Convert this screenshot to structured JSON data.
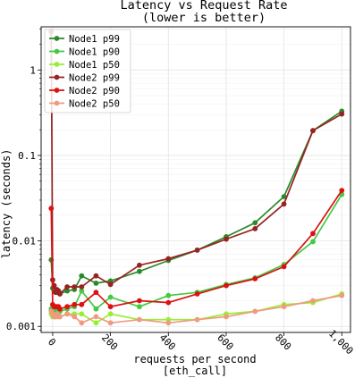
{
  "chart_data": {
    "type": "line",
    "title": "Latency vs Request Rate",
    "subtitle": "(lower is better)",
    "xlabel": "requests per second",
    "xlabel2": "[eth_call]",
    "ylabel": "latency (seconds)",
    "xlim": [
      -40,
      1030
    ],
    "ylim": [
      0.00085,
      3.2
    ],
    "yscale": "log",
    "x_ticks": [
      0,
      200,
      400,
      600,
      800,
      1000
    ],
    "x_tick_labels": [
      "0",
      "200",
      "400",
      "600",
      "800",
      "1,000"
    ],
    "y_ticks": [
      0.001,
      0.01,
      0.1,
      1
    ],
    "y_tick_labels": [
      "0.001",
      "0.01",
      "0.1",
      "1"
    ],
    "grid": true,
    "legend_position": "top-left",
    "series": [
      {
        "name": "Node1 p99",
        "color": "#2a8a2a",
        "x": [
          -5,
          0,
          5,
          10,
          15,
          20,
          25,
          50,
          75,
          100,
          150,
          200,
          300,
          400,
          500,
          600,
          700,
          800,
          900,
          1000
        ],
        "y": [
          0.006,
          0.0028,
          0.0026,
          0.0026,
          0.0025,
          0.0026,
          0.0024,
          0.0026,
          0.0027,
          0.0039,
          0.0032,
          0.0034,
          0.0044,
          0.0059,
          0.0078,
          0.0112,
          0.0163,
          0.033,
          0.195,
          0.33
        ]
      },
      {
        "name": "Node1 p90",
        "color": "#44c944",
        "x": [
          -5,
          0,
          5,
          10,
          15,
          20,
          25,
          50,
          75,
          100,
          150,
          200,
          300,
          400,
          500,
          600,
          700,
          800,
          900,
          1000
        ],
        "y": [
          0.0016,
          0.0016,
          0.0015,
          0.0015,
          0.0016,
          0.0016,
          0.0015,
          0.0016,
          0.0017,
          0.0026,
          0.0016,
          0.0022,
          0.0017,
          0.0023,
          0.0025,
          0.0031,
          0.0037,
          0.0053,
          0.0098,
          0.035
        ]
      },
      {
        "name": "Node1 p50",
        "color": "#99ee33",
        "x": [
          -5,
          0,
          5,
          10,
          15,
          20,
          25,
          50,
          75,
          100,
          150,
          200,
          300,
          400,
          500,
          600,
          700,
          800,
          900,
          1000
        ],
        "y": [
          0.0014,
          0.0013,
          0.0013,
          0.0013,
          0.0014,
          0.0013,
          0.0013,
          0.0014,
          0.0014,
          0.0014,
          0.0011,
          0.0014,
          0.0012,
          0.0012,
          0.0012,
          0.0014,
          0.0015,
          0.0018,
          0.0019,
          0.0024
        ]
      },
      {
        "name": "Node2 p99",
        "color": "#992222",
        "x": [
          -5,
          0,
          5,
          10,
          15,
          20,
          25,
          50,
          75,
          100,
          150,
          200,
          300,
          400,
          500,
          600,
          700,
          800,
          900,
          1000
        ],
        "y": [
          2.8,
          0.0035,
          0.003,
          0.0025,
          0.0027,
          0.0026,
          0.0024,
          0.0029,
          0.0029,
          0.0029,
          0.0039,
          0.0031,
          0.0052,
          0.0062,
          0.0078,
          0.0105,
          0.0139,
          0.027,
          0.195,
          0.305
        ]
      },
      {
        "name": "Node2 p90",
        "color": "#dd1111",
        "x": [
          -5,
          0,
          5,
          10,
          15,
          20,
          25,
          50,
          75,
          100,
          150,
          200,
          300,
          400,
          500,
          600,
          700,
          800,
          900,
          1000
        ],
        "y": [
          0.024,
          0.0018,
          0.0017,
          0.0017,
          0.0017,
          0.0017,
          0.0016,
          0.0017,
          0.0018,
          0.0018,
          0.0025,
          0.0017,
          0.002,
          0.0019,
          0.0024,
          0.003,
          0.0036,
          0.005,
          0.0122,
          0.039
        ]
      },
      {
        "name": "Node2 p50",
        "color": "#f09a80",
        "x": [
          -5,
          0,
          5,
          10,
          15,
          20,
          25,
          50,
          75,
          100,
          150,
          200,
          300,
          400,
          500,
          600,
          700,
          800,
          900,
          1000
        ],
        "y": [
          0.0015,
          0.0014,
          0.0013,
          0.0013,
          0.0014,
          0.0013,
          0.0013,
          0.0014,
          0.0013,
          0.0011,
          0.0013,
          0.0011,
          0.0012,
          0.0011,
          0.0012,
          0.0013,
          0.0015,
          0.0017,
          0.002,
          0.0023
        ]
      }
    ]
  }
}
